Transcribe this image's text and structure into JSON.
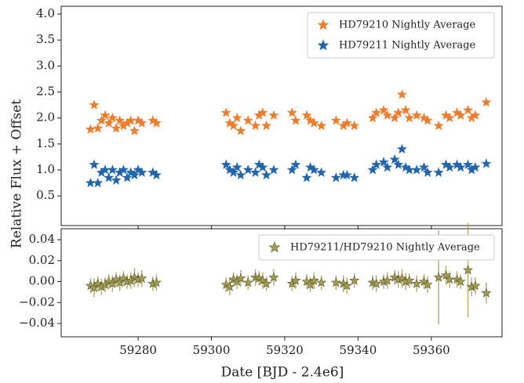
{
  "chart_data": [
    {
      "type": "scatter",
      "ylabel": "Relative Flux + Offset",
      "legend": "upper right",
      "xlim": [
        59259,
        59379.3
      ],
      "ylim": [
        -0.07,
        4.15
      ],
      "yticks": [
        0.5,
        {
          "value": 1.0,
          "label": "1.0"
        },
        1.5,
        {
          "value": 2.0,
          "label": "2.0"
        },
        2.5,
        {
          "value": 3.0,
          "label": "3.0"
        },
        3.5,
        {
          "value": 4.0,
          "label": "4.0"
        }
      ],
      "x": [
        59267,
        59268,
        59269,
        59270,
        59271,
        59272,
        59273,
        59274,
        59275,
        59276,
        59277,
        59278,
        59279,
        59280,
        59281,
        59284,
        59285,
        59304,
        59305,
        59306,
        59307,
        59308,
        59310,
        59312,
        59313,
        59314,
        59315,
        59317,
        59322,
        59323,
        59326,
        59327,
        59328,
        59330,
        59334,
        59336,
        59337,
        59339,
        59344,
        59345,
        59347,
        59348,
        59350,
        59351,
        59352,
        59353,
        59354,
        59356,
        59358,
        59359,
        59362,
        59364,
        59365,
        59367,
        59368,
        59370,
        59371,
        59372,
        59375
      ],
      "series": [
        {
          "name": "HD79210 Nightly Average",
          "color": "#ee7d2c",
          "values": [
            1.78,
            2.25,
            1.8,
            1.95,
            2.05,
            1.9,
            2.0,
            1.8,
            1.95,
            1.85,
            1.9,
            1.95,
            1.75,
            1.95,
            1.9,
            1.95,
            1.9,
            2.1,
            1.9,
            1.85,
            2.0,
            1.75,
            1.95,
            1.85,
            2.05,
            2.1,
            1.85,
            2.05,
            2.1,
            1.95,
            2.05,
            1.95,
            1.9,
            1.85,
            1.95,
            1.85,
            1.9,
            1.85,
            2.0,
            2.1,
            2.15,
            2.05,
            2.0,
            2.1,
            2.45,
            2.15,
            2.0,
            2.05,
            2.0,
            1.95,
            1.85,
            2.05,
            2.0,
            2.1,
            2.05,
            2.15,
            2.0,
            2.05,
            2.3
          ]
        },
        {
          "name": "HD79211 Nightly Average",
          "color": "#2166ac",
          "values": [
            0.75,
            1.1,
            0.75,
            0.95,
            1.0,
            0.85,
            1.0,
            0.8,
            0.95,
            1.0,
            0.85,
            0.95,
            0.9,
            1.0,
            0.95,
            0.95,
            0.9,
            1.1,
            1.0,
            0.95,
            1.05,
            0.9,
            1.0,
            0.95,
            1.1,
            1.05,
            0.9,
            1.0,
            1.0,
            1.1,
            0.85,
            1.05,
            1.0,
            0.95,
            0.85,
            0.9,
            0.9,
            0.85,
            1.0,
            1.1,
            1.15,
            1.05,
            1.2,
            1.1,
            1.4,
            1.05,
            1.0,
            1.0,
            1.05,
            0.95,
            0.95,
            1.1,
            1.05,
            1.1,
            1.05,
            1.1,
            1.0,
            1.05,
            1.12
          ]
        }
      ]
    },
    {
      "type": "scatter",
      "xlabel": "Date [BJD - 2.4e6]",
      "legend": "upper right",
      "xlim": [
        59259,
        59379.3
      ],
      "ylim": [
        -0.0527,
        0.0505
      ],
      "xticks": [
        59280,
        59300,
        59320,
        59340,
        59360,
        59380
      ],
      "yticks": [
        {
          "value": -0.04,
          "label": "−0.04"
        },
        {
          "value": -0.02,
          "label": "−0.02"
        },
        {
          "value": 0.0,
          "label": "0.00"
        },
        0.02,
        0.04
      ],
      "x": [
        59267,
        59268,
        59269,
        59270,
        59271,
        59272,
        59273,
        59274,
        59275,
        59276,
        59277,
        59278,
        59279,
        59280,
        59281,
        59284,
        59285,
        59304,
        59305,
        59306,
        59307,
        59308,
        59310,
        59312,
        59313,
        59314,
        59315,
        59317,
        59322,
        59323,
        59326,
        59327,
        59328,
        59330,
        59334,
        59336,
        59337,
        59339,
        59344,
        59345,
        59347,
        59348,
        59350,
        59351,
        59352,
        59353,
        59354,
        59356,
        59358,
        59359,
        59362,
        59364,
        59365,
        59367,
        59368,
        59370,
        59371,
        59372,
        59375
      ],
      "series": [
        {
          "name": "HD79211/HD79210 Nightly Average",
          "color": "#a39d4f",
          "values": [
            -0.004,
            -0.006,
            -0.002,
            -0.005,
            -0.003,
            0.0,
            -0.002,
            0.002,
            -0.001,
            0.003,
            0.0,
            0.001,
            0.004,
            0.002,
            0.003,
            -0.002,
            -0.001,
            -0.003,
            -0.005,
            0.002,
            0.0,
            0.003,
            -0.001,
            0.004,
            0.003,
            0.001,
            -0.002,
            0.004,
            -0.002,
            0.001,
            0.0,
            -0.003,
            0.001,
            -0.001,
            -0.001,
            -0.002,
            -0.004,
            0.001,
            -0.001,
            -0.002,
            0.0,
            0.001,
            0.004,
            0.002,
            0.003,
            0.0,
            0.001,
            -0.002,
            0.0,
            -0.003,
            0.004,
            0.006,
            0.002,
            0.002,
            0.0,
            0.011,
            -0.005,
            -0.004,
            -0.011
          ],
          "errors": [
            0.007,
            0.009,
            0.007,
            0.008,
            0.007,
            0.007,
            0.008,
            0.007,
            0.008,
            0.007,
            0.007,
            0.008,
            0.009,
            0.007,
            0.008,
            0.007,
            0.008,
            0.007,
            0.008,
            0.007,
            0.007,
            0.008,
            0.007,
            0.008,
            0.007,
            0.008,
            0.007,
            0.008,
            0.007,
            0.008,
            0.007,
            0.007,
            0.008,
            0.007,
            0.007,
            0.008,
            0.008,
            0.007,
            0.007,
            0.008,
            0.007,
            0.008,
            0.007,
            0.008,
            0.009,
            0.008,
            0.007,
            0.008,
            0.007,
            0.008,
            0.045,
            0.009,
            0.008,
            0.008,
            0.007,
            0.045,
            0.009,
            0.008,
            0.01
          ]
        }
      ]
    }
  ]
}
